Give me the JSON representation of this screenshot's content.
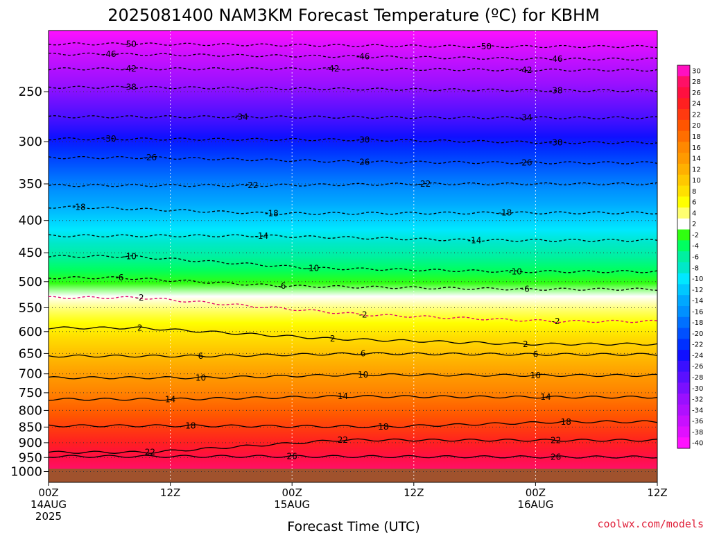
{
  "chart_data": {
    "type": "heatmap",
    "title": "2025081400 NAM3KM Forecast Temperature (ºC) for KBHM",
    "xlabel": "Forecast Time (UTC)",
    "ylabel": "",
    "x_ticks": [
      {
        "line1": "00Z",
        "line2": "14AUG",
        "line3": "2025",
        "hours": 0
      },
      {
        "line1": "12Z",
        "line2": "",
        "line3": "",
        "hours": 12
      },
      {
        "line1": "00Z",
        "line2": "15AUG",
        "line3": "",
        "hours": 24
      },
      {
        "line1": "12Z",
        "line2": "",
        "line3": "",
        "hours": 36
      },
      {
        "line1": "00Z",
        "line2": "16AUG",
        "line3": "",
        "hours": 48
      },
      {
        "line1": "12Z",
        "line2": "",
        "line3": "",
        "hours": 60
      }
    ],
    "xlim_hours": [
      0,
      60
    ],
    "y_ticks": [
      250,
      300,
      350,
      400,
      450,
      500,
      550,
      600,
      650,
      700,
      750,
      800,
      850,
      900,
      950,
      1000
    ],
    "ylim_hpa": [
      200,
      1040
    ],
    "y_scale": "log",
    "ground_level_hpa": 990,
    "colorbar_ticks": [
      "30",
      "28",
      "26",
      "24",
      "22",
      "20",
      "18",
      "16",
      "14",
      "12",
      "10",
      "8",
      "6",
      "4",
      "2",
      "-2",
      "-4",
      "-6",
      "-8",
      "-10",
      "-12",
      "-14",
      "-16",
      "-18",
      "-20",
      "-22",
      "-24",
      "-26",
      "-28",
      "-30",
      "-32",
      "-34",
      "-36",
      "-38",
      "-40"
    ],
    "colorbar_colors": [
      "#ff10c0",
      "#ff1066",
      "#ff1040",
      "#ff2020",
      "#ff3a10",
      "#ff5500",
      "#ff6e00",
      "#ff8800",
      "#ff9a00",
      "#ffb000",
      "#ffc800",
      "#ffe000",
      "#ffff00",
      "#ffff70",
      "#ffffff",
      "#30ff10",
      "#00ff60",
      "#00f0a0",
      "#00e8c8",
      "#00e8ff",
      "#00c8ff",
      "#00a8ff",
      "#0090ff",
      "#0070ff",
      "#0050ff",
      "#0030ff",
      "#1010ff",
      "#3a10ff",
      "#5a10ff",
      "#7a10ff",
      "#9a10ff",
      "#b010ff",
      "#c810ff",
      "#e010ff",
      "#ff10ff"
    ],
    "isotherm_labels": [
      {
        "label": "-50",
        "at": [
          [
            8,
            210
          ],
          [
            43,
            212
          ]
        ]
      },
      {
        "label": "-46",
        "at": [
          [
            6,
            218
          ],
          [
            31,
            220
          ],
          [
            50,
            222
          ]
        ]
      },
      {
        "label": "-42",
        "at": [
          [
            8,
            230
          ],
          [
            28,
            230
          ],
          [
            47,
            231
          ]
        ]
      },
      {
        "label": "-38",
        "at": [
          [
            8,
            246
          ],
          [
            50,
            249
          ]
        ]
      },
      {
        "label": "-34",
        "at": [
          [
            19,
            274
          ],
          [
            47,
            275
          ]
        ]
      },
      {
        "label": "-30",
        "at": [
          [
            6,
            297
          ],
          [
            31,
            298
          ],
          [
            50,
            301
          ]
        ]
      },
      {
        "label": "-26",
        "at": [
          [
            10,
            318
          ],
          [
            31,
            323
          ],
          [
            47,
            324
          ]
        ]
      },
      {
        "label": "-22",
        "at": [
          [
            20,
            352
          ],
          [
            37,
            350
          ]
        ]
      },
      {
        "label": "-18",
        "at": [
          [
            3,
            381
          ],
          [
            22,
            390
          ],
          [
            45,
            389
          ]
        ]
      },
      {
        "label": "-14",
        "at": [
          [
            21,
            423
          ],
          [
            42,
            430
          ]
        ]
      },
      {
        "label": "-10",
        "at": [
          [
            8,
            456
          ],
          [
            26,
            476
          ],
          [
            46,
            482
          ]
        ]
      },
      {
        "label": "-6",
        "at": [
          [
            7,
            493
          ],
          [
            23,
            508
          ],
          [
            47,
            514
          ]
        ]
      },
      {
        "label": "-2",
        "at": [
          [
            9,
            530
          ],
          [
            31,
            564
          ],
          [
            50,
            578
          ]
        ]
      },
      {
        "label": "2",
        "at": [
          [
            9,
            592
          ],
          [
            28,
            616
          ],
          [
            47,
            628
          ]
        ]
      },
      {
        "label": "6",
        "at": [
          [
            15,
            656
          ],
          [
            31,
            650
          ],
          [
            48,
            652
          ]
        ]
      },
      {
        "label": "10",
        "at": [
          [
            15,
            710
          ],
          [
            31,
            702
          ],
          [
            48,
            704
          ]
        ]
      },
      {
        "label": "14",
        "at": [
          [
            12,
            768
          ],
          [
            29,
            760
          ],
          [
            49,
            762
          ]
        ]
      },
      {
        "label": "18",
        "at": [
          [
            14,
            846
          ],
          [
            33,
            849
          ],
          [
            51,
            834
          ]
        ]
      },
      {
        "label": "22",
        "at": [
          [
            10,
            932
          ],
          [
            29,
            891
          ],
          [
            50,
            892
          ]
        ]
      },
      {
        "label": "26",
        "at": [
          [
            24,
            946
          ],
          [
            50,
            948
          ]
        ]
      }
    ]
  },
  "credit": "coolwx.com/models"
}
